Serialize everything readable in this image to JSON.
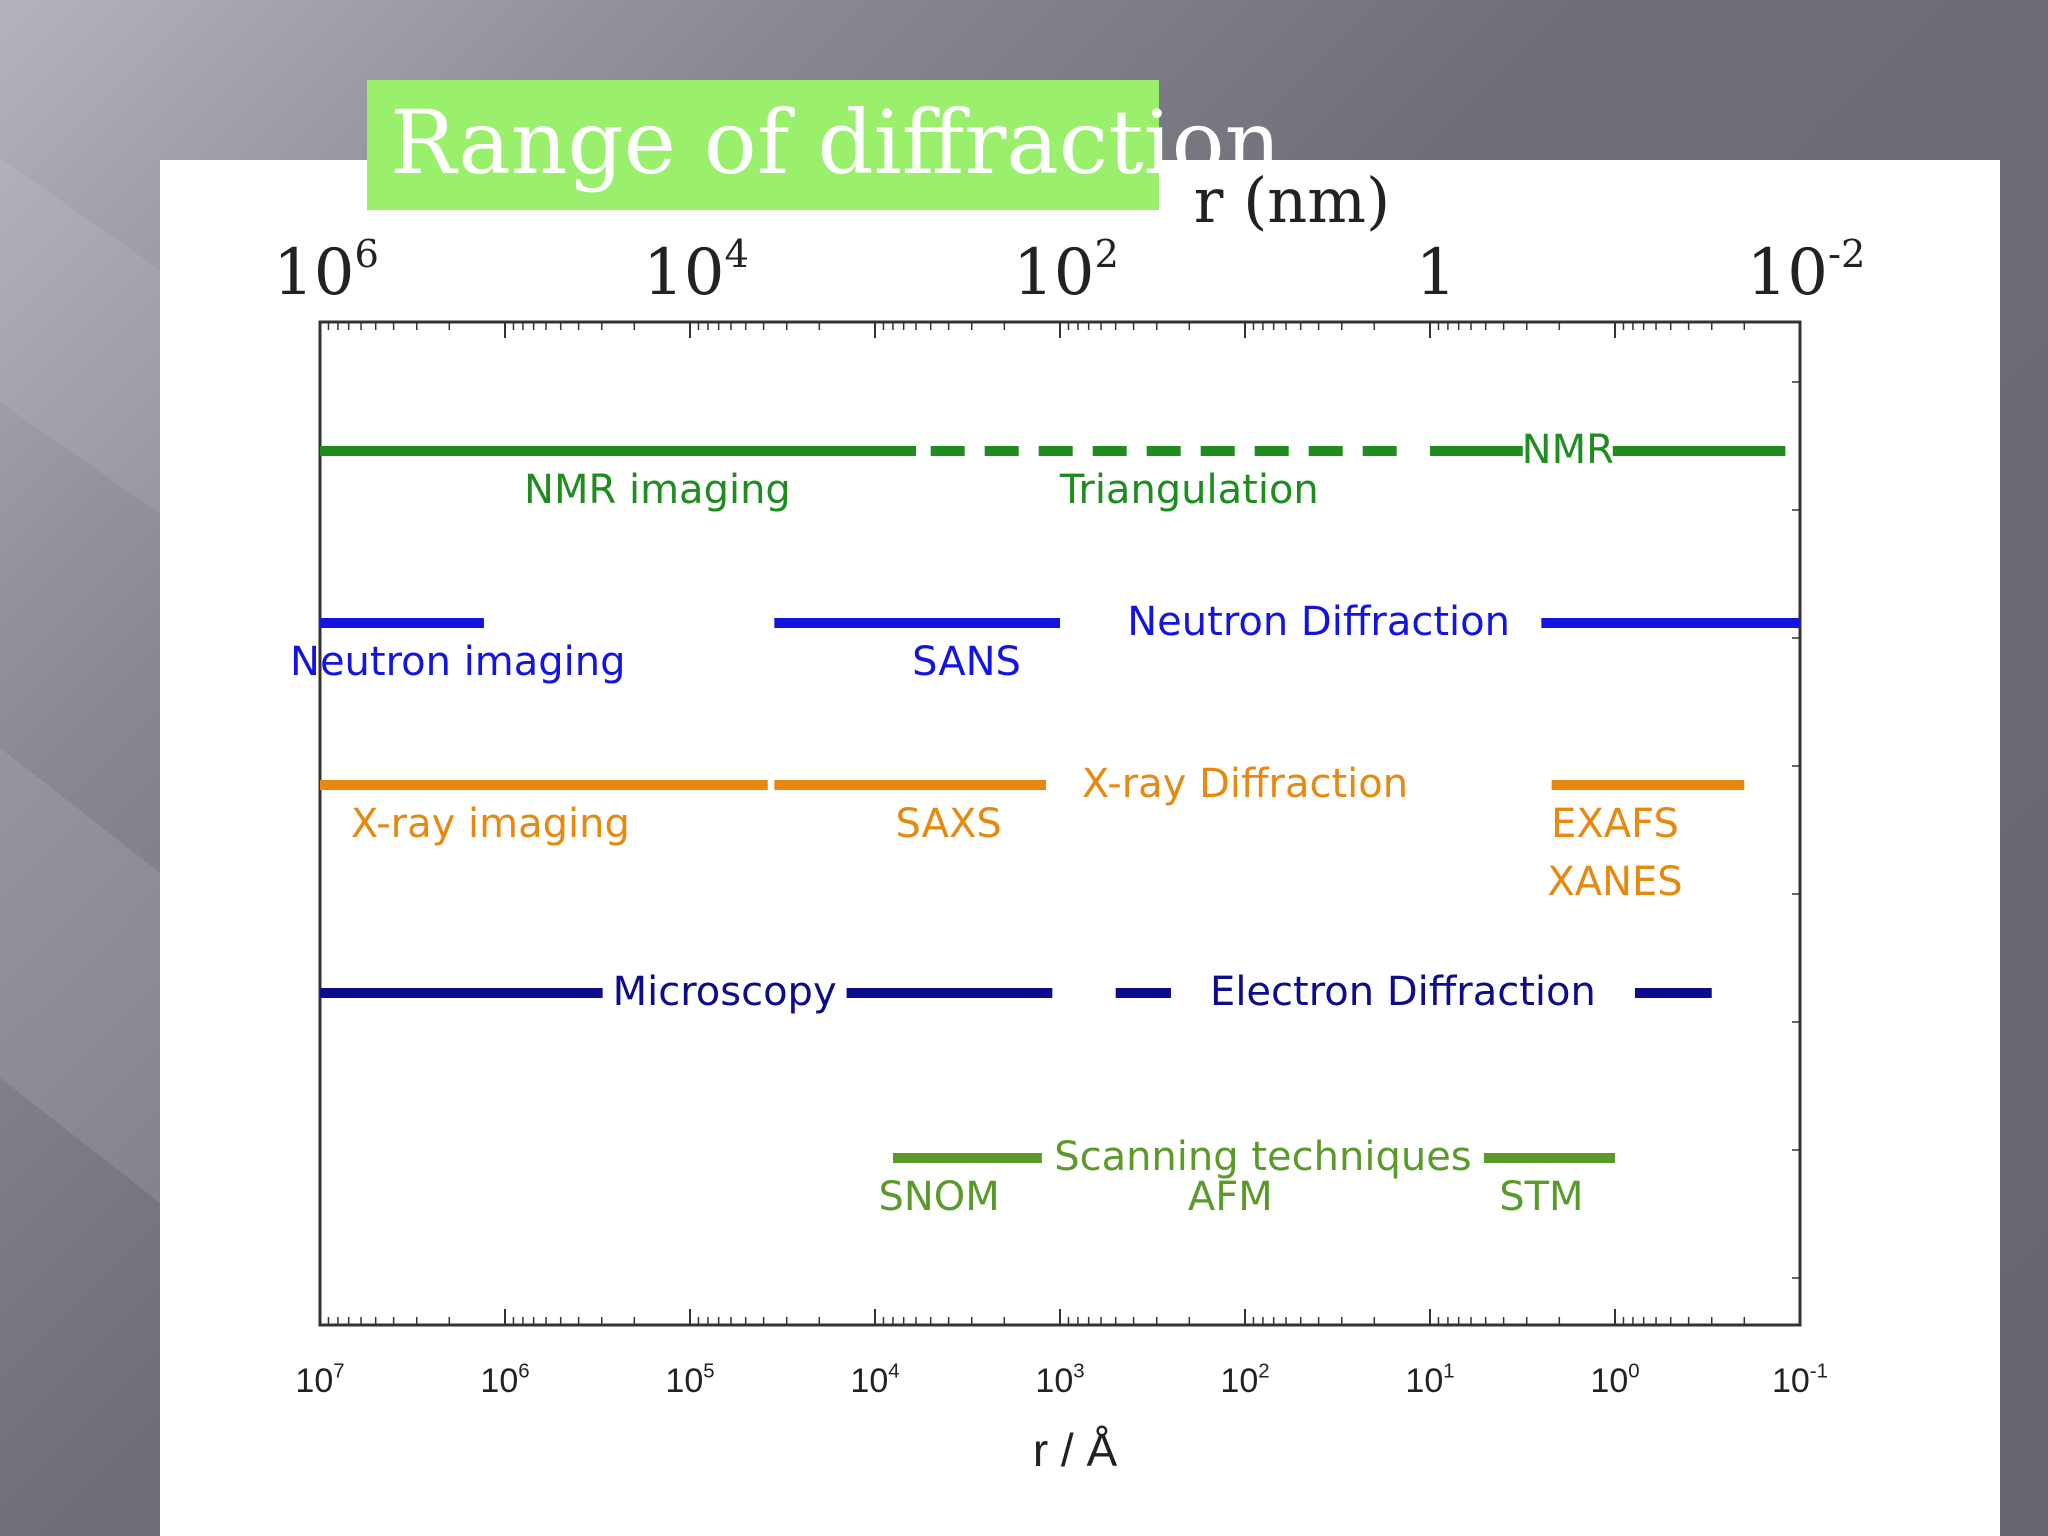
{
  "slide": {
    "title": "Range of diffraction",
    "colors": {
      "title_box": "#9af06c",
      "title_text": "#ffffff",
      "panel": "#ffffff"
    }
  },
  "chart_data": {
    "type": "range",
    "x_top": {
      "label": "r (nm)",
      "ticks": [
        {
          "value": 1000000,
          "base": "10",
          "exp": "6"
        },
        {
          "value": 10000,
          "base": "10",
          "exp": "4"
        },
        {
          "value": 100,
          "base": "10",
          "exp": "2"
        },
        {
          "value": 1,
          "base": "1",
          "exp": ""
        },
        {
          "value": 0.01,
          "base": "10",
          "exp": "-2"
        }
      ]
    },
    "x_bottom": {
      "label": "r / Å",
      "scale": "log",
      "range": [
        10000000,
        0.1
      ],
      "ticks": [
        {
          "value": 10000000,
          "base": "10",
          "exp": "7"
        },
        {
          "value": 1000000,
          "base": "10",
          "exp": "6"
        },
        {
          "value": 100000,
          "base": "10",
          "exp": "5"
        },
        {
          "value": 10000,
          "base": "10",
          "exp": "4"
        },
        {
          "value": 1000,
          "base": "10",
          "exp": "3"
        },
        {
          "value": 100,
          "base": "10",
          "exp": "2"
        },
        {
          "value": 10,
          "base": "10",
          "exp": "1"
        },
        {
          "value": 1,
          "base": "10",
          "exp": "0"
        },
        {
          "value": 0.1,
          "base": "10",
          "exp": "-1"
        }
      ]
    },
    "rows": [
      {
        "color": "#1e8c1e",
        "segments": [
          {
            "from": 10000000,
            "to": 6000,
            "style": "solid"
          },
          {
            "from": 5000,
            "to": 12,
            "style": "dashed"
          },
          {
            "from": 10,
            "to": 0.12,
            "style": "solid"
          }
        ],
        "labels": [
          {
            "text": "NMR imaging",
            "at": 150000,
            "pos": "below"
          },
          {
            "text": "Triangulation",
            "at": 200,
            "pos": "below"
          },
          {
            "text": "NMR",
            "at": 1.8,
            "pos": "inline"
          }
        ]
      },
      {
        "color": "#1414e0",
        "segments": [
          {
            "from": 10000000,
            "to": 1300000,
            "style": "solid"
          },
          {
            "from": 35000,
            "to": 1000,
            "style": "solid"
          },
          {
            "from": 2.5,
            "to": 0.1,
            "style": "solid"
          }
        ],
        "labels": [
          {
            "text": "Neutron imaging",
            "at": 1800000,
            "pos": "below"
          },
          {
            "text": "SANS",
            "at": 3200,
            "pos": "below"
          },
          {
            "text": "Neutron Diffraction",
            "at": 40,
            "pos": "inline"
          }
        ]
      },
      {
        "color": "#e8890f",
        "segments": [
          {
            "from": 10000000,
            "to": 38000,
            "style": "solid"
          },
          {
            "from": 35000,
            "to": 1100,
            "style": "solid"
          },
          {
            "from": 2.2,
            "to": 0.2,
            "style": "solid"
          }
        ],
        "labels": [
          {
            "text": "X-ray imaging",
            "at": 1200000,
            "pos": "below"
          },
          {
            "text": "SAXS",
            "at": 4000,
            "pos": "below"
          },
          {
            "text": "X-ray Diffraction",
            "at": 100,
            "pos": "inline"
          },
          {
            "text": "EXAFS",
            "at": 1.0,
            "pos": "below"
          },
          {
            "text": "XANES",
            "at": 1.0,
            "pos": "below2"
          }
        ]
      },
      {
        "color": "#0c0c8c",
        "segments": [
          {
            "from": 10000000,
            "to": 1100,
            "style": "solid"
          },
          {
            "from": 500,
            "to": 0.3,
            "style": "solid"
          }
        ],
        "labels": [
          {
            "text": "Microscopy",
            "at": 65000,
            "pos": "inline"
          },
          {
            "text": "Electron Diffraction",
            "at": 14,
            "pos": "inline"
          }
        ]
      },
      {
        "color": "#5a9a2a",
        "segments": [
          {
            "from": 8000,
            "to": 1.0,
            "style": "solid"
          }
        ],
        "labels": [
          {
            "text": "Scanning techniques",
            "at": 80,
            "pos": "inline"
          },
          {
            "text": "SNOM",
            "at": 4500,
            "pos": "below"
          },
          {
            "text": "AFM",
            "at": 120,
            "pos": "below"
          },
          {
            "text": "STM",
            "at": 2.5,
            "pos": "below"
          }
        ]
      }
    ]
  }
}
